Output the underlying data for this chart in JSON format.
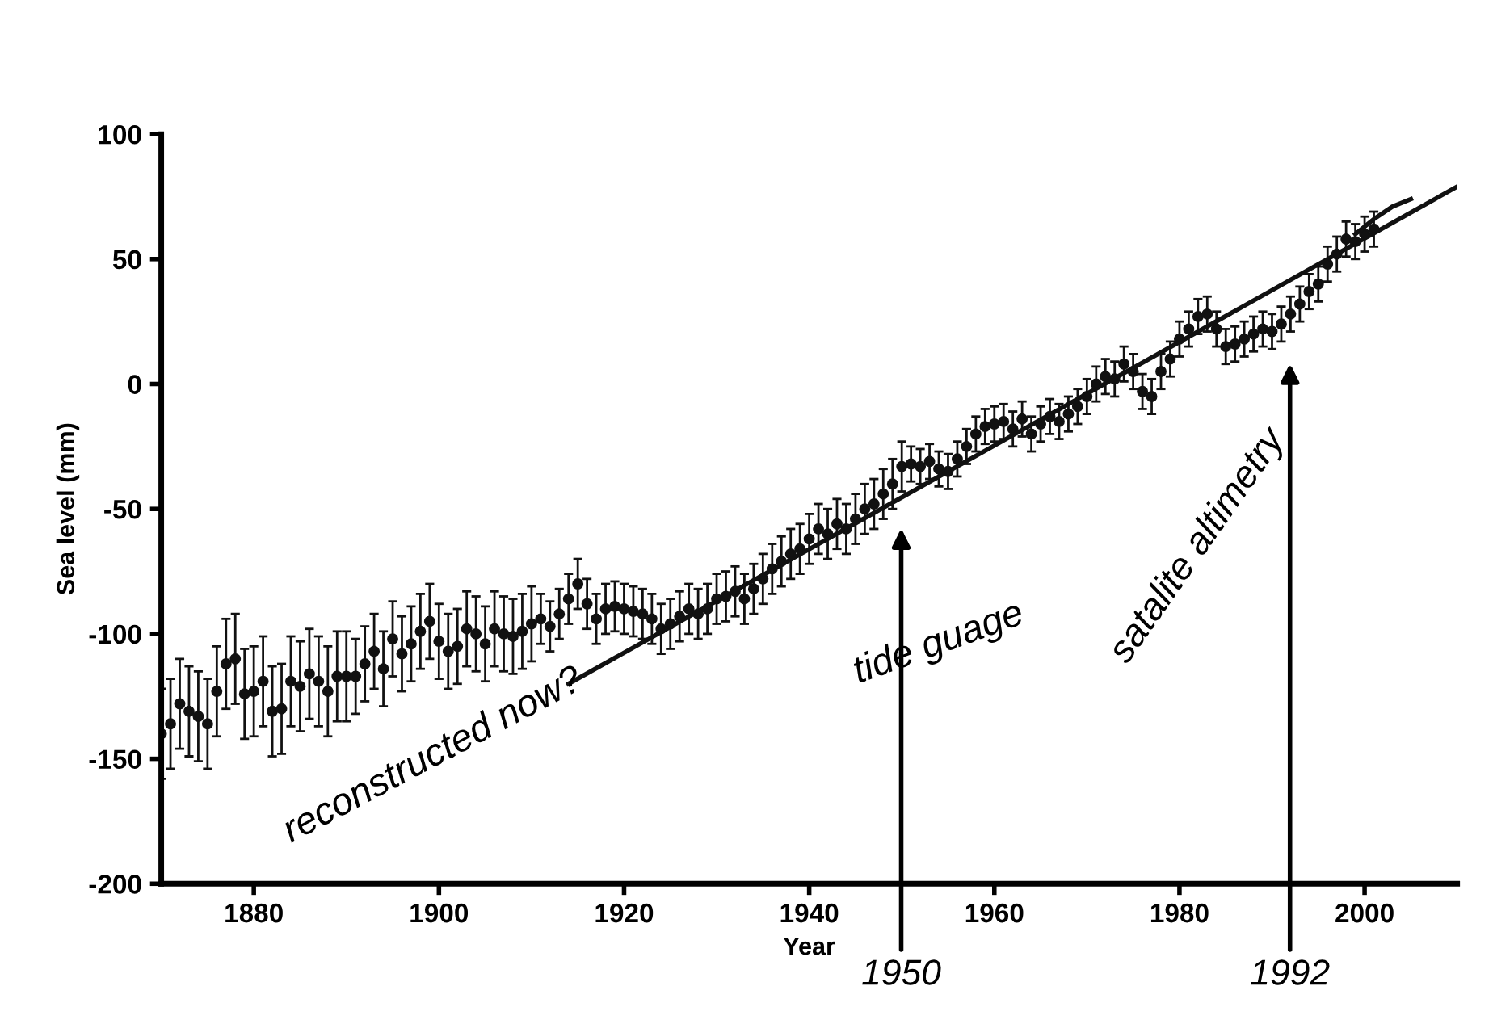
{
  "chart_data": {
    "type": "scatter",
    "xlabel": "Year",
    "ylabel": "Sea level (mm)",
    "xlim": [
      1870,
      2010
    ],
    "ylim": [
      -200,
      100
    ],
    "xticks": [
      1880,
      1900,
      1920,
      1940,
      1960,
      1980,
      2000
    ],
    "yticks": [
      -200,
      -150,
      -100,
      -50,
      0,
      50,
      100
    ],
    "grid": false,
    "legend": false,
    "series": [
      {
        "marker": "circle",
        "color": "#111111",
        "x": [
          1870,
          1871,
          1872,
          1873,
          1874,
          1875,
          1876,
          1877,
          1878,
          1879,
          1880,
          1881,
          1882,
          1883,
          1884,
          1885,
          1886,
          1887,
          1888,
          1889,
          1890,
          1891,
          1892,
          1893,
          1894,
          1895,
          1896,
          1897,
          1898,
          1899,
          1900,
          1901,
          1902,
          1903,
          1904,
          1905,
          1906,
          1907,
          1908,
          1909,
          1910,
          1911,
          1912,
          1913,
          1914,
          1915,
          1916,
          1917,
          1918,
          1919,
          1920,
          1921,
          1922,
          1923,
          1924,
          1925,
          1926,
          1927,
          1928,
          1929,
          1930,
          1931,
          1932,
          1933,
          1934,
          1935,
          1936,
          1937,
          1938,
          1939,
          1940,
          1941,
          1942,
          1943,
          1944,
          1945,
          1946,
          1947,
          1948,
          1949,
          1950,
          1951,
          1952,
          1953,
          1954,
          1955,
          1956,
          1957,
          1958,
          1959,
          1960,
          1961,
          1962,
          1963,
          1964,
          1965,
          1966,
          1967,
          1968,
          1969,
          1970,
          1971,
          1972,
          1973,
          1974,
          1975,
          1976,
          1977,
          1978,
          1979,
          1980,
          1981,
          1982,
          1983,
          1984,
          1985,
          1986,
          1987,
          1988,
          1989,
          1990,
          1991,
          1992,
          1993,
          1994,
          1995,
          1996,
          1997,
          1998,
          1999,
          2000,
          2001
        ],
        "values": [
          -140,
          -136,
          -128,
          -131,
          -133,
          -136,
          -123,
          -112,
          -110,
          -124,
          -123,
          -119,
          -131,
          -130,
          -119,
          -121,
          -116,
          -119,
          -123,
          -117,
          -117,
          -117,
          -112,
          -107,
          -114,
          -102,
          -108,
          -104,
          -99,
          -95,
          -103,
          -107,
          -105,
          -98,
          -100,
          -104,
          -98,
          -100,
          -101,
          -99,
          -96,
          -94,
          -97,
          -92,
          -86,
          -80,
          -88,
          -94,
          -90,
          -89,
          -90,
          -91,
          -92,
          -94,
          -98,
          -96,
          -93,
          -90,
          -92,
          -90,
          -86,
          -85,
          -83,
          -86,
          -82,
          -78,
          -74,
          -71,
          -68,
          -66,
          -62,
          -58,
          -60,
          -56,
          -58,
          -54,
          -50,
          -48,
          -44,
          -40,
          -33,
          -32,
          -33,
          -31,
          -34,
          -35,
          -30,
          -25,
          -20,
          -17,
          -16,
          -15,
          -18,
          -14,
          -20,
          -16,
          -13,
          -15,
          -12,
          -9,
          -5,
          0,
          3,
          2,
          8,
          5,
          -3,
          -5,
          5,
          10,
          18,
          22,
          27,
          28,
          22,
          15,
          16,
          18,
          20,
          22,
          21,
          24,
          28,
          32,
          37,
          40,
          48,
          52,
          58,
          57,
          60,
          62
        ],
        "errors": [
          18,
          18,
          18,
          18,
          18,
          18,
          18,
          18,
          18,
          18,
          18,
          18,
          18,
          18,
          18,
          18,
          18,
          18,
          18,
          18,
          18,
          15,
          15,
          15,
          15,
          15,
          15,
          15,
          15,
          15,
          15,
          15,
          15,
          15,
          15,
          15,
          15,
          15,
          15,
          15,
          15,
          10,
          10,
          10,
          10,
          10,
          10,
          10,
          10,
          10,
          10,
          10,
          10,
          10,
          10,
          10,
          10,
          10,
          10,
          10,
          10,
          10,
          10,
          10,
          10,
          10,
          10,
          10,
          10,
          10,
          10,
          10,
          10,
          10,
          10,
          10,
          10,
          10,
          10,
          10,
          10,
          7,
          7,
          7,
          7,
          7,
          7,
          7,
          7,
          7,
          7,
          7,
          7,
          7,
          7,
          7,
          7,
          7,
          7,
          7,
          7,
          7,
          7,
          7,
          7,
          7,
          7,
          7,
          7,
          7,
          7,
          7,
          7,
          7,
          7,
          7,
          7,
          7,
          7,
          7,
          7,
          7,
          7,
          7,
          7,
          7,
          7,
          7,
          7,
          7,
          7,
          7
        ]
      },
      {
        "type": "line",
        "color": "#111111",
        "x": [
          1999,
          2001,
          2003,
          2005
        ],
        "values": [
          60,
          66,
          71,
          74
        ]
      },
      {
        "type": "line",
        "color": "#111111",
        "x": [
          1914,
          2010
        ],
        "values": [
          -120,
          79
        ]
      }
    ],
    "annotations": [
      "1950",
      "1992",
      "reconstructed now?",
      "tide guage",
      "satalite altimetry"
    ]
  }
}
